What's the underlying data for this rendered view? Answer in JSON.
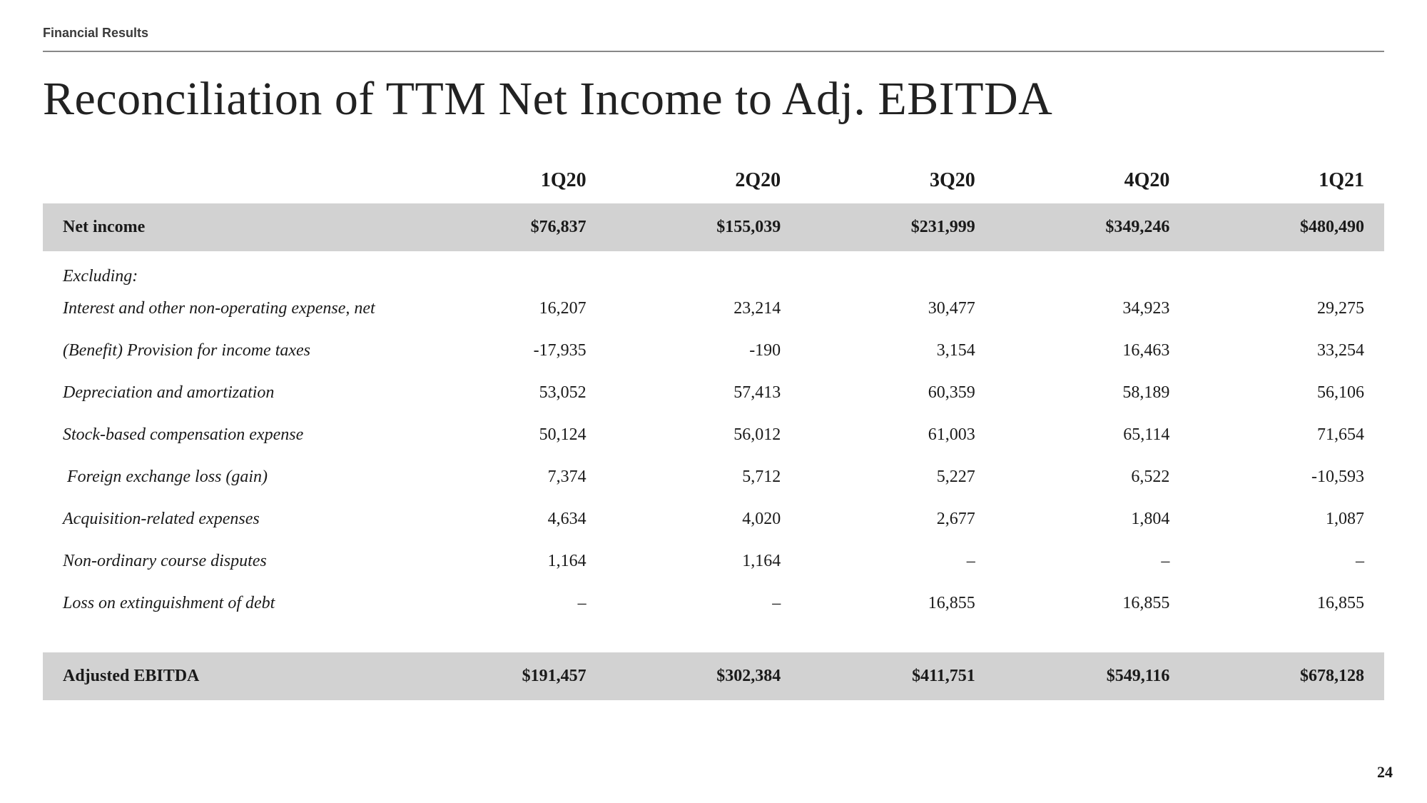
{
  "header": {
    "section_label": "Financial Results",
    "title": "Reconciliation of TTM Net Income to Adj. EBITDA"
  },
  "table": {
    "columns": [
      "1Q20",
      "2Q20",
      "3Q20",
      "4Q20",
      "1Q21"
    ],
    "column_fontsize_pt": 21,
    "label_col_width_pct": 27.5,
    "data_col_width_pct": 14.5,
    "highlight_bg_color": "#d2d2d2",
    "body_fontsize_pt": 18,
    "rows": [
      {
        "key": "net_income",
        "label": "Net income",
        "highlight": true,
        "italic": false,
        "values": [
          "$76,837",
          "$155,039",
          "$231,999",
          "$349,246",
          "$480,490"
        ]
      },
      {
        "key": "excluding",
        "label": "Excluding:",
        "highlight": false,
        "italic": true,
        "values": [
          "",
          "",
          "",
          "",
          ""
        ]
      },
      {
        "key": "interest",
        "label": "Interest and other non-operating expense, net",
        "highlight": false,
        "italic": true,
        "values": [
          "16,207",
          "23,214",
          "30,477",
          "34,923",
          "29,275"
        ]
      },
      {
        "key": "tax",
        "label": "(Benefit) Provision for income taxes",
        "highlight": false,
        "italic": true,
        "values": [
          "-17,935",
          "-190",
          "3,154",
          "16,463",
          "33,254"
        ]
      },
      {
        "key": "depreciation",
        "label": "Depreciation and amortization",
        "highlight": false,
        "italic": true,
        "values": [
          "53,052",
          "57,413",
          "60,359",
          "58,189",
          "56,106"
        ]
      },
      {
        "key": "sbc",
        "label": "Stock-based compensation expense",
        "highlight": false,
        "italic": true,
        "values": [
          "50,124",
          "56,012",
          "61,003",
          "65,114",
          "71,654"
        ]
      },
      {
        "key": "fx",
        "label": " Foreign exchange loss (gain)",
        "highlight": false,
        "italic": true,
        "values": [
          "7,374",
          "5,712",
          "5,227",
          "6,522",
          "-10,593"
        ]
      },
      {
        "key": "acq",
        "label": "Acquisition-related expenses",
        "highlight": false,
        "italic": true,
        "values": [
          "4,634",
          "4,020",
          "2,677",
          "1,804",
          "1,087"
        ]
      },
      {
        "key": "disputes",
        "label": "Non-ordinary course disputes",
        "highlight": false,
        "italic": true,
        "values": [
          "1,164",
          "1,164",
          "–",
          "–",
          "–"
        ]
      },
      {
        "key": "debt",
        "label": "Loss on extinguishment of debt",
        "highlight": false,
        "italic": true,
        "values": [
          "–",
          "–",
          "16,855",
          "16,855",
          "16,855"
        ]
      },
      {
        "key": "adj_ebitda",
        "label": "Adjusted EBITDA",
        "highlight": true,
        "italic": false,
        "values": [
          "$191,457",
          "$302,384",
          "$411,751",
          "$549,116",
          "$678,128"
        ]
      }
    ]
  },
  "footer": {
    "page_number": "24"
  },
  "style": {
    "background_color": "#ffffff",
    "text_color": "#1a1a1a",
    "rule_color": "#888888",
    "title_fontsize_pt": 50,
    "section_label_fontsize_pt": 14,
    "font_family_body": "Georgia, serif",
    "font_family_label": "Arial, sans-serif"
  }
}
